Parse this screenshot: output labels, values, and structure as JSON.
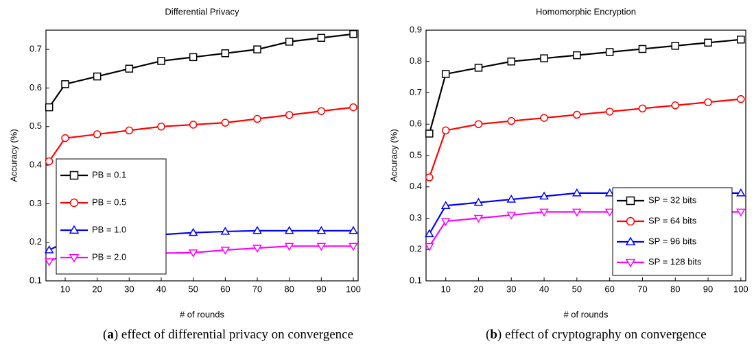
{
  "chart_data": [
    {
      "type": "line",
      "title": "Differential Privacy",
      "xlabel": "# of rounds",
      "ylabel": "Accuracy (%)",
      "x": [
        5,
        10,
        20,
        30,
        40,
        50,
        60,
        70,
        80,
        90,
        100
      ],
      "xlim": [
        4,
        101.5
      ],
      "xticks": [
        10,
        20,
        30,
        40,
        50,
        60,
        70,
        80,
        90,
        100
      ],
      "ylim": [
        0.1,
        0.75
      ],
      "yticks": [
        0.1,
        0.2,
        0.3,
        0.4,
        0.5,
        0.6,
        0.7
      ],
      "legend": "center left",
      "series": [
        {
          "name": "PB = 0.1",
          "color": "#000000",
          "marker": "square",
          "values": [
            0.55,
            0.61,
            0.63,
            0.65,
            0.67,
            0.68,
            0.69,
            0.7,
            0.72,
            0.73,
            0.74
          ]
        },
        {
          "name": "PB = 0.5",
          "color": "#ff0000",
          "marker": "circle",
          "values": [
            0.41,
            0.47,
            0.48,
            0.49,
            0.5,
            0.505,
            0.51,
            0.52,
            0.53,
            0.54,
            0.55
          ]
        },
        {
          "name": "PB = 1.0",
          "color": "#0000ff",
          "marker": "triangle-up",
          "values": [
            0.18,
            0.2,
            0.205,
            0.21,
            0.22,
            0.225,
            0.228,
            0.23,
            0.23,
            0.23,
            0.23
          ]
        },
        {
          "name": "PB = 2.0",
          "color": "#ff00ff",
          "marker": "triangle-down",
          "values": [
            0.15,
            0.17,
            0.17,
            0.171,
            0.172,
            0.173,
            0.18,
            0.185,
            0.19,
            0.19,
            0.19
          ]
        }
      ]
    },
    {
      "type": "line",
      "title": "Homomorphic Encryption",
      "xlabel": "# of rounds",
      "ylabel": "Accuracy (%)",
      "x": [
        5,
        10,
        20,
        30,
        40,
        50,
        60,
        70,
        80,
        90,
        100
      ],
      "xlim": [
        4,
        101.5
      ],
      "xticks": [
        10,
        20,
        30,
        40,
        50,
        60,
        70,
        80,
        90,
        100
      ],
      "ylim": [
        0.1,
        0.9
      ],
      "yticks": [
        0.1,
        0.2,
        0.3,
        0.4,
        0.5,
        0.6,
        0.7,
        0.8,
        0.9
      ],
      "legend": "lower right",
      "series": [
        {
          "name": "SP = 32 bits",
          "color": "#000000",
          "marker": "square",
          "values": [
            0.57,
            0.76,
            0.78,
            0.8,
            0.81,
            0.82,
            0.83,
            0.84,
            0.85,
            0.86,
            0.87
          ]
        },
        {
          "name": "SP = 64 bits",
          "color": "#ff0000",
          "marker": "circle",
          "values": [
            0.43,
            0.58,
            0.6,
            0.61,
            0.62,
            0.63,
            0.64,
            0.65,
            0.66,
            0.67,
            0.68
          ]
        },
        {
          "name": "SP = 96 bits",
          "color": "#0000ff",
          "marker": "triangle-up",
          "values": [
            0.25,
            0.34,
            0.35,
            0.36,
            0.37,
            0.38,
            0.38,
            0.38,
            0.38,
            0.38,
            0.38
          ]
        },
        {
          "name": "SP = 128 bits",
          "color": "#ff00ff",
          "marker": "triangle-down",
          "values": [
            0.21,
            0.29,
            0.3,
            0.31,
            0.32,
            0.32,
            0.32,
            0.32,
            0.32,
            0.32,
            0.32
          ]
        }
      ]
    }
  ],
  "captions": [
    {
      "open": "(",
      "label": "a",
      "text": ") effect of differential privacy on convergence"
    },
    {
      "open": "(",
      "label": "b",
      "text": ") effect of cryptography on convergence"
    }
  ]
}
